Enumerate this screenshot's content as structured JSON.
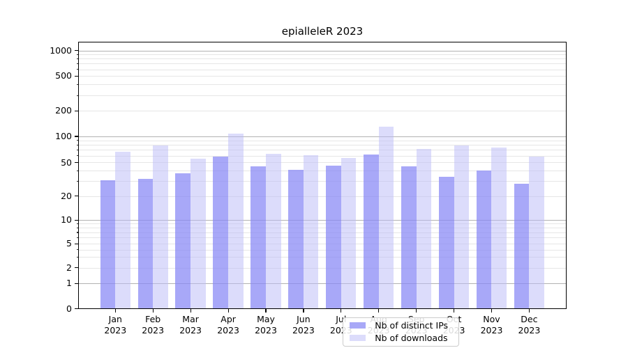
{
  "title": "epialleleR 2023",
  "chart_data": {
    "type": "bar",
    "title": "epialleleR 2023",
    "categories": [
      "Jan 2023",
      "Feb 2023",
      "Mar 2023",
      "Apr 2023",
      "May 2023",
      "Jun 2023",
      "Jul 2023",
      "Aug 2023",
      "Sep 2023",
      "Oct 2023",
      "Nov 2023",
      "Dec 2023"
    ],
    "series": [
      {
        "name": "Nb of distinct IPs",
        "color": "#a8a8f7",
        "bar_fill": "rgba(134,134,245,0.72)",
        "values": [
          31,
          32,
          37,
          58,
          45,
          41,
          46,
          62,
          45,
          34,
          40,
          28
        ]
      },
      {
        "name": "Nb of downloads",
        "color": "#dcdcfb",
        "bar_fill": "rgba(185,185,247,0.5)",
        "values": [
          66,
          78,
          55,
          108,
          63,
          61,
          56,
          130,
          72,
          79,
          75,
          58
        ]
      }
    ],
    "yticks": [
      0,
      1,
      2,
      5,
      10,
      20,
      50,
      100,
      200,
      500,
      1000
    ],
    "ylabel": "",
    "xlabel": "",
    "yscale": "symlog",
    "ylim": [
      0,
      1250
    ],
    "grid": true,
    "major_grid_color": "#b2b2b2",
    "minor_grid_color": "#e6e6e6",
    "legend_position": "lower center"
  }
}
